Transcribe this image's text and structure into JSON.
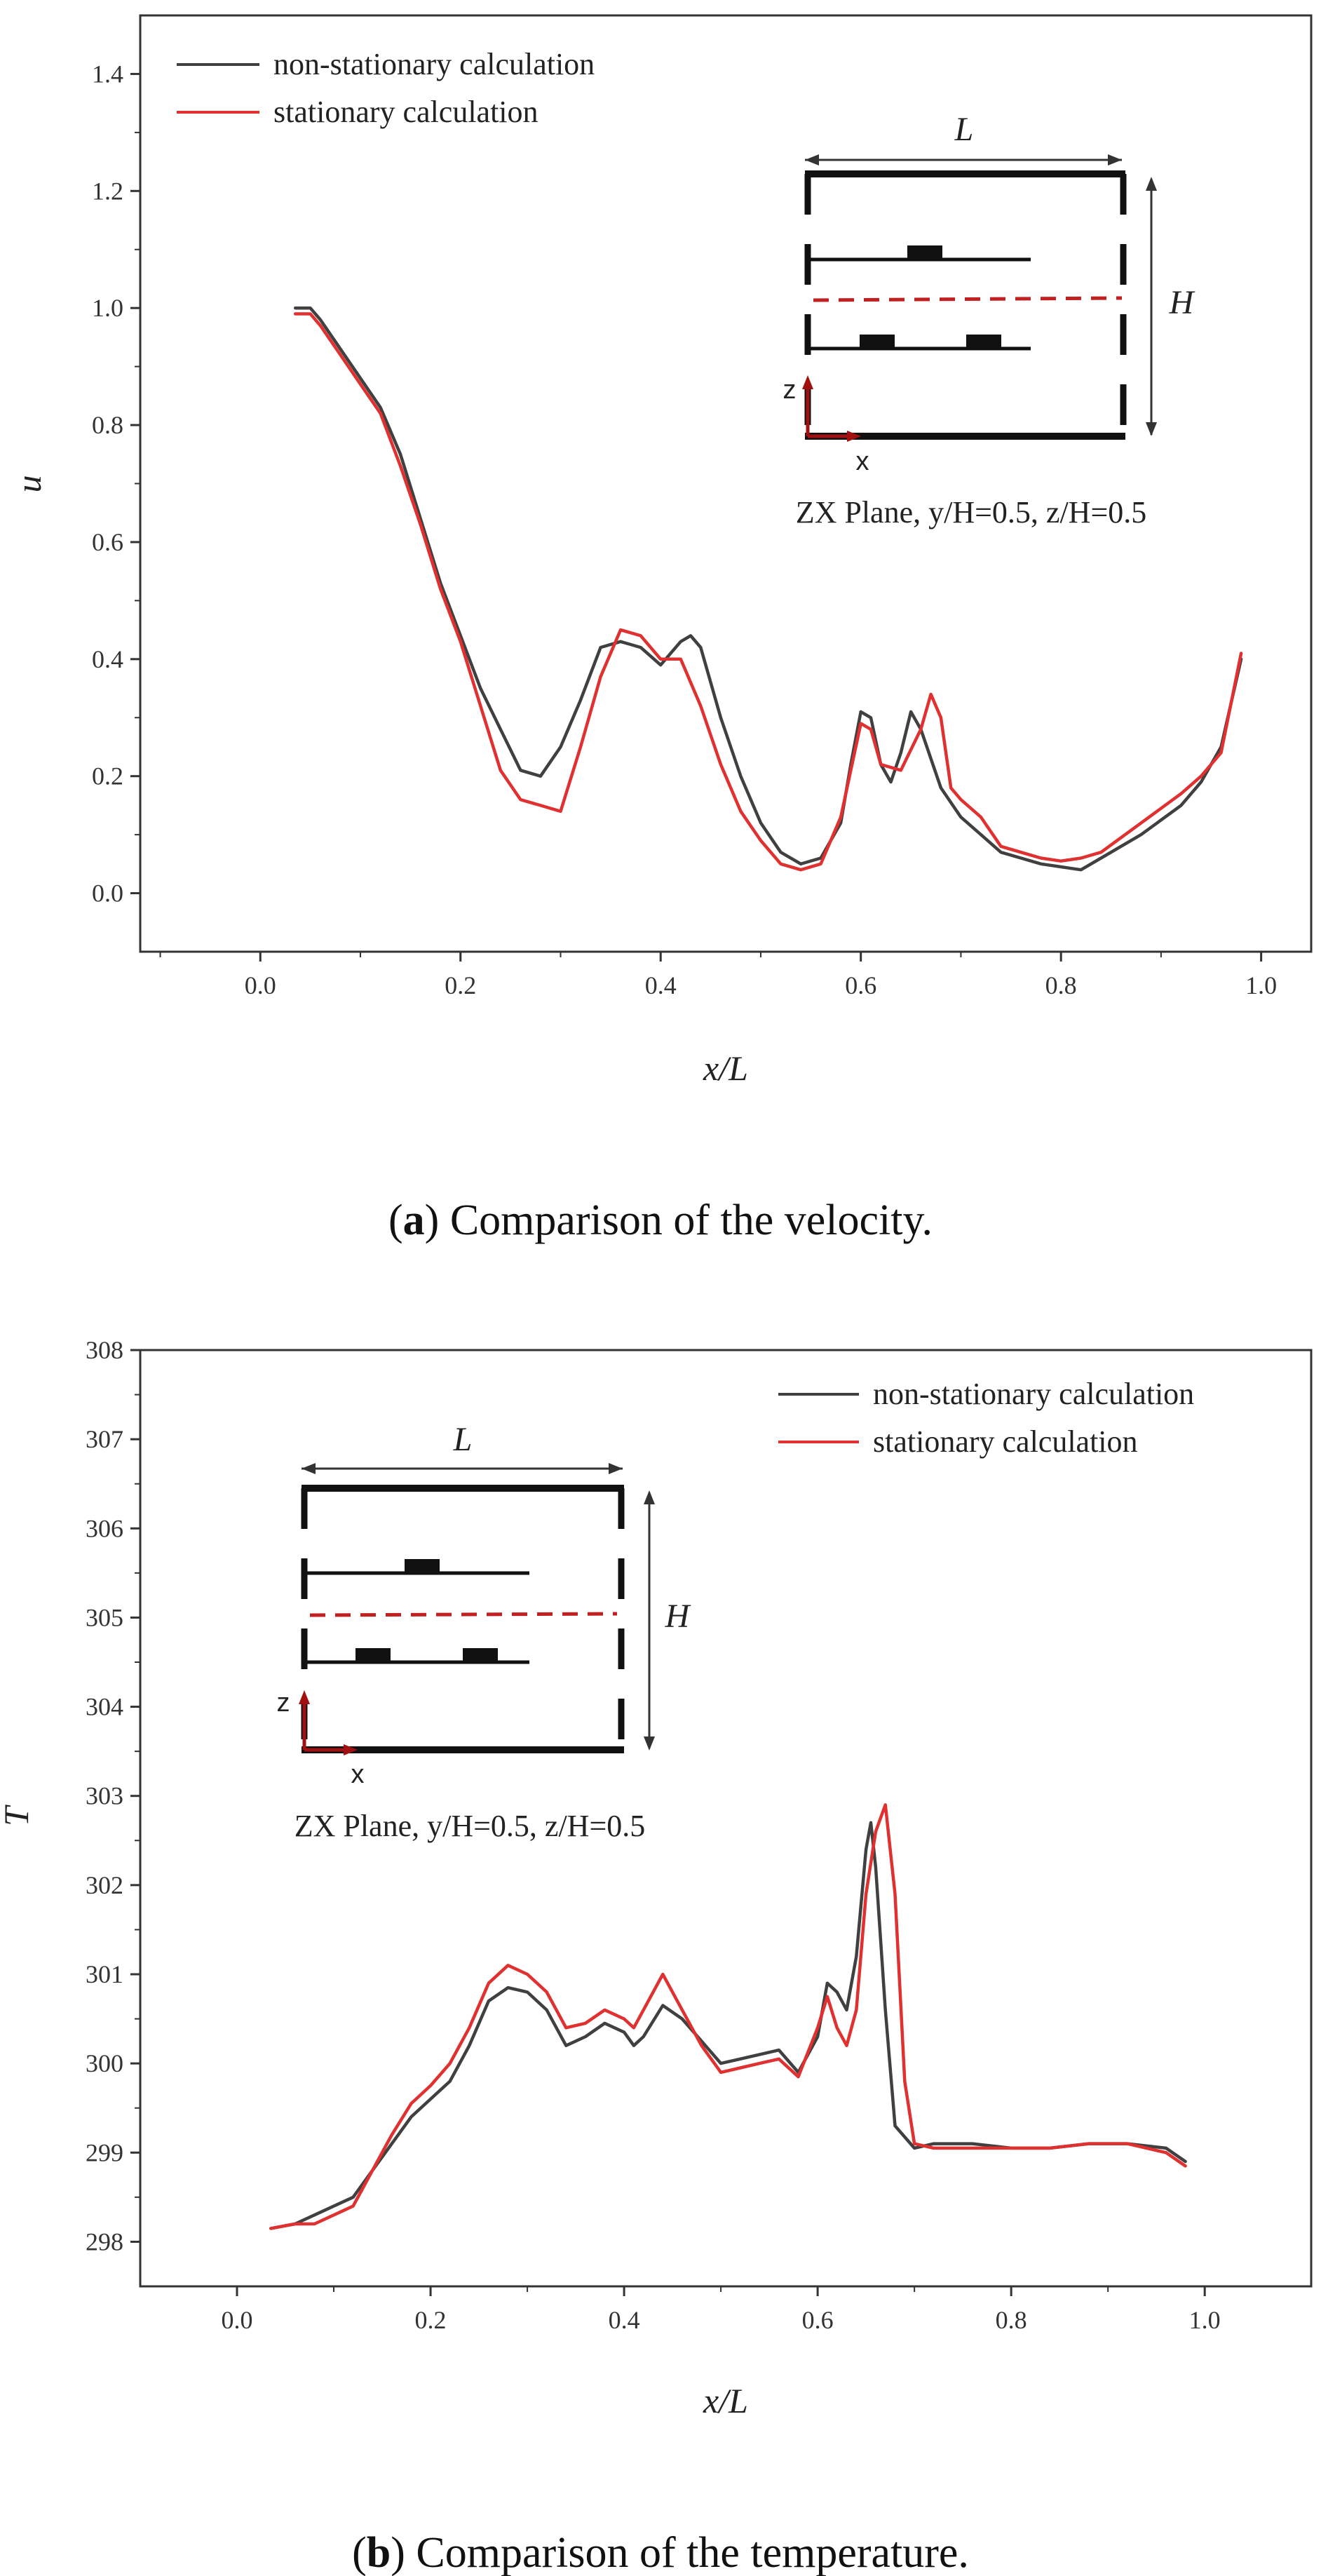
{
  "chart_data": [
    {
      "type": "line",
      "panel": "a",
      "xlabel": "x/L",
      "ylabel": "u",
      "xlim": [
        -0.12,
        1.05
      ],
      "ylim": [
        -0.1,
        1.5
      ],
      "xticks": [
        0.0,
        0.2,
        0.4,
        0.6,
        0.8,
        1.0
      ],
      "xtick_labels": [
        "0.0",
        "0.2",
        "0.4",
        "0.6",
        "0.8",
        "1.0"
      ],
      "yticks": [
        0.0,
        0.2,
        0.4,
        0.6,
        0.8,
        1.0,
        1.2,
        1.4
      ],
      "ytick_labels": [
        "0.0",
        "0.2",
        "0.4",
        "0.6",
        "0.8",
        "1.0",
        "1.2",
        "1.4"
      ],
      "legend_position": "top-left",
      "series": [
        {
          "name": "non-stationary calculation",
          "color": "#404040",
          "points": [
            [
              0.035,
              1.0
            ],
            [
              0.05,
              1.0
            ],
            [
              0.06,
              0.98
            ],
            [
              0.08,
              0.93
            ],
            [
              0.1,
              0.88
            ],
            [
              0.12,
              0.83
            ],
            [
              0.14,
              0.75
            ],
            [
              0.16,
              0.64
            ],
            [
              0.18,
              0.53
            ],
            [
              0.2,
              0.44
            ],
            [
              0.22,
              0.35
            ],
            [
              0.24,
              0.28
            ],
            [
              0.26,
              0.21
            ],
            [
              0.28,
              0.2
            ],
            [
              0.3,
              0.25
            ],
            [
              0.32,
              0.33
            ],
            [
              0.34,
              0.42
            ],
            [
              0.36,
              0.43
            ],
            [
              0.38,
              0.42
            ],
            [
              0.4,
              0.39
            ],
            [
              0.42,
              0.43
            ],
            [
              0.43,
              0.44
            ],
            [
              0.44,
              0.42
            ],
            [
              0.46,
              0.3
            ],
            [
              0.48,
              0.2
            ],
            [
              0.5,
              0.12
            ],
            [
              0.52,
              0.07
            ],
            [
              0.54,
              0.05
            ],
            [
              0.56,
              0.06
            ],
            [
              0.58,
              0.12
            ],
            [
              0.59,
              0.22
            ],
            [
              0.6,
              0.31
            ],
            [
              0.61,
              0.3
            ],
            [
              0.62,
              0.22
            ],
            [
              0.63,
              0.19
            ],
            [
              0.64,
              0.24
            ],
            [
              0.65,
              0.31
            ],
            [
              0.66,
              0.28
            ],
            [
              0.68,
              0.18
            ],
            [
              0.7,
              0.13
            ],
            [
              0.72,
              0.1
            ],
            [
              0.74,
              0.07
            ],
            [
              0.76,
              0.06
            ],
            [
              0.78,
              0.05
            ],
            [
              0.8,
              0.045
            ],
            [
              0.82,
              0.04
            ],
            [
              0.84,
              0.06
            ],
            [
              0.88,
              0.1
            ],
            [
              0.92,
              0.15
            ],
            [
              0.94,
              0.19
            ],
            [
              0.96,
              0.25
            ],
            [
              0.98,
              0.4
            ]
          ]
        },
        {
          "name": "stationary calculation",
          "color": "#e03030",
          "points": [
            [
              0.035,
              0.99
            ],
            [
              0.05,
              0.99
            ],
            [
              0.06,
              0.97
            ],
            [
              0.08,
              0.92
            ],
            [
              0.1,
              0.87
            ],
            [
              0.12,
              0.82
            ],
            [
              0.14,
              0.73
            ],
            [
              0.16,
              0.63
            ],
            [
              0.18,
              0.52
            ],
            [
              0.2,
              0.43
            ],
            [
              0.22,
              0.32
            ],
            [
              0.24,
              0.21
            ],
            [
              0.26,
              0.16
            ],
            [
              0.28,
              0.15
            ],
            [
              0.3,
              0.14
            ],
            [
              0.32,
              0.25
            ],
            [
              0.34,
              0.37
            ],
            [
              0.36,
              0.45
            ],
            [
              0.38,
              0.44
            ],
            [
              0.4,
              0.4
            ],
            [
              0.42,
              0.4
            ],
            [
              0.44,
              0.32
            ],
            [
              0.46,
              0.22
            ],
            [
              0.48,
              0.14
            ],
            [
              0.5,
              0.09
            ],
            [
              0.52,
              0.05
            ],
            [
              0.54,
              0.04
            ],
            [
              0.56,
              0.05
            ],
            [
              0.58,
              0.13
            ],
            [
              0.6,
              0.29
            ],
            [
              0.61,
              0.28
            ],
            [
              0.62,
              0.22
            ],
            [
              0.64,
              0.21
            ],
            [
              0.66,
              0.28
            ],
            [
              0.67,
              0.34
            ],
            [
              0.68,
              0.3
            ],
            [
              0.69,
              0.18
            ],
            [
              0.7,
              0.16
            ],
            [
              0.72,
              0.13
            ],
            [
              0.74,
              0.08
            ],
            [
              0.76,
              0.07
            ],
            [
              0.78,
              0.06
            ],
            [
              0.8,
              0.055
            ],
            [
              0.82,
              0.06
            ],
            [
              0.84,
              0.07
            ],
            [
              0.88,
              0.12
            ],
            [
              0.92,
              0.17
            ],
            [
              0.94,
              0.2
            ],
            [
              0.96,
              0.24
            ],
            [
              0.98,
              0.41
            ]
          ]
        }
      ],
      "inset": {
        "length_label": "L",
        "height_label": "H",
        "z_label": "z",
        "x_label": "x",
        "plane_label": "ZX Plane, y/H=0.5, z/H=0.5"
      },
      "caption": {
        "letter": "a",
        "text": "Comparison of the velocity."
      }
    },
    {
      "type": "line",
      "panel": "b",
      "xlabel": "x/L",
      "ylabel": "T",
      "xlim": [
        -0.1,
        1.11
      ],
      "ylim": [
        297.5,
        308.0
      ],
      "xticks": [
        0.0,
        0.2,
        0.4,
        0.6,
        0.8,
        1.0
      ],
      "xtick_labels": [
        "0.0",
        "0.2",
        "0.4",
        "0.6",
        "0.8",
        "1.0"
      ],
      "yticks": [
        298,
        299,
        300,
        301,
        302,
        303,
        304,
        305,
        306,
        307,
        308
      ],
      "ytick_labels": [
        "298",
        "299",
        "300",
        "301",
        "302",
        "303",
        "304",
        "305",
        "306",
        "307",
        "308"
      ],
      "legend_position": "top-right",
      "series": [
        {
          "name": "non-stationary calculation",
          "color": "#404040",
          "points": [
            [
              0.035,
              298.15
            ],
            [
              0.06,
              298.2
            ],
            [
              0.08,
              298.3
            ],
            [
              0.1,
              298.4
            ],
            [
              0.12,
              298.5
            ],
            [
              0.14,
              298.8
            ],
            [
              0.16,
              299.1
            ],
            [
              0.18,
              299.4
            ],
            [
              0.2,
              299.6
            ],
            [
              0.22,
              299.8
            ],
            [
              0.24,
              300.2
            ],
            [
              0.26,
              300.7
            ],
            [
              0.28,
              300.85
            ],
            [
              0.3,
              300.8
            ],
            [
              0.32,
              300.6
            ],
            [
              0.34,
              300.2
            ],
            [
              0.36,
              300.3
            ],
            [
              0.38,
              300.45
            ],
            [
              0.4,
              300.35
            ],
            [
              0.41,
              300.2
            ],
            [
              0.42,
              300.3
            ],
            [
              0.44,
              300.65
            ],
            [
              0.46,
              300.5
            ],
            [
              0.48,
              300.25
            ],
            [
              0.5,
              300.0
            ],
            [
              0.52,
              300.05
            ],
            [
              0.54,
              300.1
            ],
            [
              0.56,
              300.15
            ],
            [
              0.58,
              299.9
            ],
            [
              0.6,
              300.3
            ],
            [
              0.61,
              300.9
            ],
            [
              0.62,
              300.8
            ],
            [
              0.63,
              300.6
            ],
            [
              0.64,
              301.2
            ],
            [
              0.65,
              302.4
            ],
            [
              0.655,
              302.7
            ],
            [
              0.66,
              302.2
            ],
            [
              0.67,
              300.6
            ],
            [
              0.68,
              299.3
            ],
            [
              0.7,
              299.05
            ],
            [
              0.72,
              299.1
            ],
            [
              0.76,
              299.1
            ],
            [
              0.8,
              299.05
            ],
            [
              0.84,
              299.05
            ],
            [
              0.88,
              299.1
            ],
            [
              0.92,
              299.1
            ],
            [
              0.96,
              299.05
            ],
            [
              0.98,
              298.9
            ]
          ]
        },
        {
          "name": "stationary calculation",
          "color": "#e03030",
          "points": [
            [
              0.035,
              298.15
            ],
            [
              0.06,
              298.2
            ],
            [
              0.08,
              298.2
            ],
            [
              0.1,
              298.3
            ],
            [
              0.12,
              298.4
            ],
            [
              0.14,
              298.8
            ],
            [
              0.16,
              299.2
            ],
            [
              0.18,
              299.55
            ],
            [
              0.2,
              299.75
            ],
            [
              0.22,
              300.0
            ],
            [
              0.24,
              300.4
            ],
            [
              0.26,
              300.9
            ],
            [
              0.28,
              301.1
            ],
            [
              0.3,
              301.0
            ],
            [
              0.32,
              300.8
            ],
            [
              0.34,
              300.4
            ],
            [
              0.36,
              300.45
            ],
            [
              0.38,
              300.6
            ],
            [
              0.4,
              300.5
            ],
            [
              0.41,
              300.4
            ],
            [
              0.42,
              300.6
            ],
            [
              0.44,
              301.0
            ],
            [
              0.46,
              300.6
            ],
            [
              0.48,
              300.2
            ],
            [
              0.5,
              299.9
            ],
            [
              0.52,
              299.95
            ],
            [
              0.54,
              300.0
            ],
            [
              0.56,
              300.05
            ],
            [
              0.58,
              299.85
            ],
            [
              0.6,
              300.4
            ],
            [
              0.61,
              300.75
            ],
            [
              0.62,
              300.4
            ],
            [
              0.63,
              300.2
            ],
            [
              0.64,
              300.6
            ],
            [
              0.65,
              301.9
            ],
            [
              0.66,
              302.6
            ],
            [
              0.67,
              302.9
            ],
            [
              0.68,
              301.9
            ],
            [
              0.69,
              299.8
            ],
            [
              0.7,
              299.1
            ],
            [
              0.72,
              299.05
            ],
            [
              0.76,
              299.05
            ],
            [
              0.8,
              299.05
            ],
            [
              0.84,
              299.05
            ],
            [
              0.88,
              299.1
            ],
            [
              0.92,
              299.1
            ],
            [
              0.96,
              299.0
            ],
            [
              0.98,
              298.85
            ]
          ]
        }
      ],
      "inset": {
        "length_label": "L",
        "height_label": "H",
        "z_label": "z",
        "x_label": "x",
        "plane_label": "ZX Plane, y/H=0.5, z/H=0.5"
      },
      "caption": {
        "letter": "b",
        "text": "Comparison of the temperature."
      }
    }
  ]
}
